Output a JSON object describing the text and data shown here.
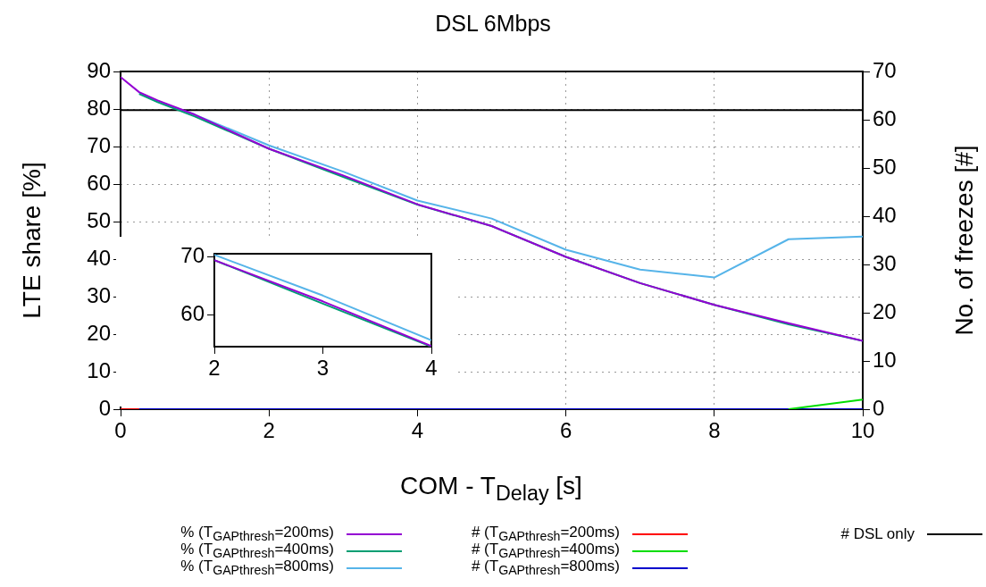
{
  "chart_data": [
    {
      "type": "line",
      "title": "DSL 6Mbps",
      "xlabel": "COM - T$_{Delay}$ [s]",
      "ylabel": "LTE share [%]",
      "y2label": "No. of freezes [#]",
      "x": [
        0,
        0.25,
        0.5,
        1,
        2,
        3,
        4,
        5,
        6,
        7,
        8,
        9,
        10
      ],
      "series": [
        {
          "name": "% (T$_{GAPthresh}$=200ms)",
          "color": "#9400d3",
          "values": [
            88.5,
            84.5,
            82.3,
            78.5,
            69.4,
            62.3,
            54.6,
            48.8,
            40.6,
            33.6,
            27.8,
            22.9,
            18.2
          ]
        },
        {
          "name": "% (T$_{GAPthresh}$=400ms)",
          "color": "#009e73",
          "values": [
            null,
            84,
            81.8,
            78,
            69.4,
            61.9,
            54.5,
            48.8,
            40.6,
            33.6,
            27.8,
            22.6,
            18.2
          ]
        },
        {
          "name": "% (T$_{GAPthresh}$=800ms)",
          "color": "#56b4e9",
          "values": [
            null,
            84.3,
            82,
            78.5,
            70.3,
            63.3,
            55.6,
            50.8,
            42.5,
            37.2,
            35.1,
            45.3,
            46
          ]
        },
        {
          "name": "# (T$_{GAPthresh}$=200ms)",
          "color": "#ff0000",
          "axis": "y2",
          "x": [
            0,
            0.25
          ],
          "values": [
            0,
            0
          ]
        },
        {
          "name": "# (T$_{GAPthresh}$=400ms)",
          "color": "#00dd00",
          "axis": "y2",
          "x": [
            9,
            10
          ],
          "values": [
            0,
            2
          ]
        },
        {
          "name": "# (T$_{GAPthresh}$=800ms)",
          "color": "#0000cc",
          "axis": "y2",
          "x": [
            0,
            10
          ],
          "values": [
            0,
            0
          ]
        },
        {
          "name": "# DSL only",
          "color": "#000000",
          "axis": "y2",
          "x": [
            0,
            10
          ],
          "values": [
            62,
            62
          ]
        }
      ],
      "xlim": [
        0,
        10
      ],
      "xticks": [
        0,
        2,
        4,
        6,
        8,
        10
      ],
      "ylim": [
        0,
        90
      ],
      "yticks": [
        0,
        10,
        20,
        30,
        40,
        50,
        60,
        70,
        80,
        90
      ],
      "y2lim": [
        0,
        70
      ],
      "y2ticks": [
        0,
        10,
        20,
        30,
        40,
        50,
        60,
        70
      ],
      "grid": true,
      "legend": "bottom"
    },
    {
      "type": "line",
      "x": [
        2,
        3,
        4
      ],
      "series": [
        {
          "color": "#9400d3",
          "values": [
            69.4,
            62.3,
            54.6
          ]
        },
        {
          "color": "#009e73",
          "values": [
            69.4,
            61.9,
            54.5
          ]
        },
        {
          "color": "#56b4e9",
          "values": [
            70.3,
            63.3,
            55.6
          ]
        }
      ],
      "xlim": [
        2,
        4
      ],
      "xticks": [
        2,
        3,
        4
      ],
      "ylim": [
        54.5,
        70.5
      ],
      "yticks": [
        60,
        70
      ]
    }
  ]
}
